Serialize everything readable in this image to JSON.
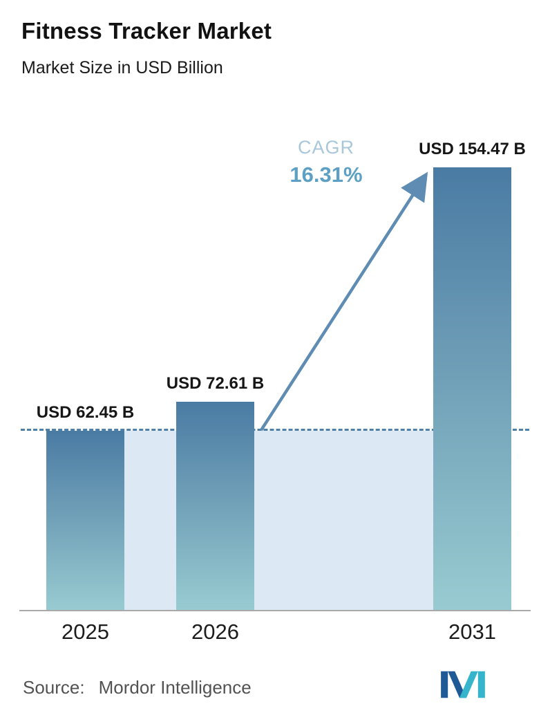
{
  "header": {
    "title": "Fitness Tracker Market",
    "subtitle": "Market Size in USD Billion"
  },
  "chart_data": {
    "type": "bar",
    "categories": [
      "2025",
      "2026",
      "2031"
    ],
    "values": [
      62.45,
      72.61,
      154.47
    ],
    "value_labels": [
      "USD 62.45 B",
      "USD 72.61 B",
      "USD 154.47 B"
    ],
    "title": "Fitness Tracker Market",
    "xlabel": "",
    "ylabel": "Market Size in USD Billion",
    "ylim": [
      0,
      160
    ],
    "grid": false,
    "legend": "none",
    "annotations": {
      "cagr_label": "CAGR",
      "cagr_value": "16.31%",
      "dashed_reference_at_value": 62.45,
      "arrow": "from top of 2026 bar to top of 2031 bar"
    },
    "colors": {
      "bar_gradient_top": "#4a7ba3",
      "bar_gradient_bottom": "#98cbd1",
      "dashed_line": "#4f81a8",
      "shaded_region": "#dce8f3",
      "arrow": "#5e8cb2",
      "cagr_label": "#a9c7da",
      "cagr_value": "#5da0c4",
      "axis_line": "#a9a9a9"
    }
  },
  "footer": {
    "source_label": "Source:",
    "source_value": "Mordor Intelligence"
  },
  "icons": {
    "logo": "mordor-intelligence-logo"
  }
}
